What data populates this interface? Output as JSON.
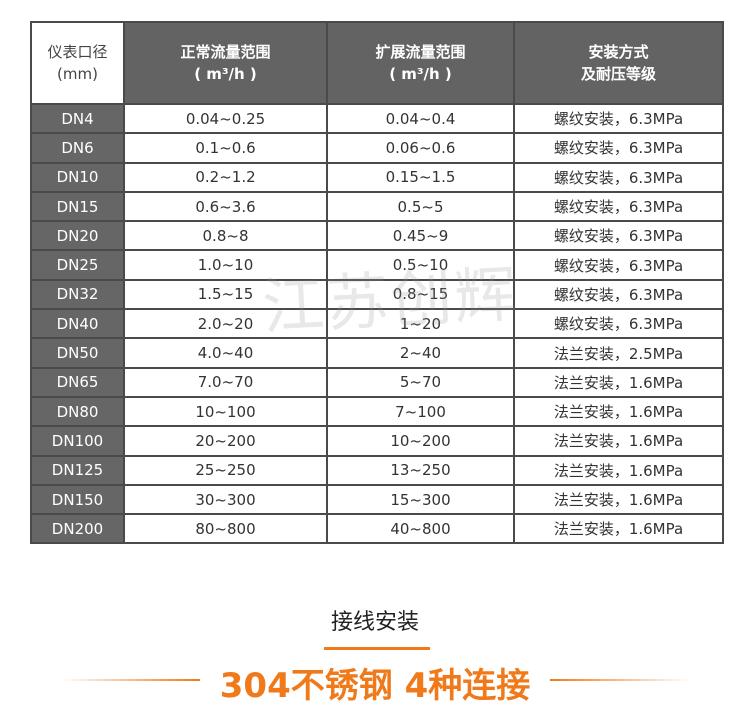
{
  "table": {
    "headers": [
      {
        "line1": "仪表口径",
        "line2": "(mm)"
      },
      {
        "line1": "正常流量范围",
        "line2": "( m³/h )"
      },
      {
        "line1": "扩展流量范围",
        "line2": "( m³/h )"
      },
      {
        "line1": "安装方式",
        "line2": "及耐压等级"
      }
    ],
    "rows": [
      [
        "DN4",
        "0.04~0.25",
        "0.04~0.4",
        "螺纹安装，6.3MPa"
      ],
      [
        "DN6",
        "0.1~0.6",
        "0.06~0.6",
        "螺纹安装，6.3MPa"
      ],
      [
        "DN10",
        "0.2~1.2",
        "0.15~1.5",
        "螺纹安装，6.3MPa"
      ],
      [
        "DN15",
        "0.6~3.6",
        "0.5~5",
        "螺纹安装，6.3MPa"
      ],
      [
        "DN20",
        "0.8~8",
        "0.45~9",
        "螺纹安装，6.3MPa"
      ],
      [
        "DN25",
        "1.0~10",
        "0.5~10",
        "螺纹安装，6.3MPa"
      ],
      [
        "DN32",
        "1.5~15",
        "0.8~15",
        "螺纹安装，6.3MPa"
      ],
      [
        "DN40",
        "2.0~20",
        "1~20",
        "螺纹安装，6.3MPa"
      ],
      [
        "DN50",
        "4.0~40",
        "2~40",
        "法兰安装，2.5MPa"
      ],
      [
        "DN65",
        "7.0~70",
        "5~70",
        "法兰安装，1.6MPa"
      ],
      [
        "DN80",
        "10~100",
        "7~100",
        "法兰安装，1.6MPa"
      ],
      [
        "DN100",
        "20~200",
        "10~200",
        "法兰安装，1.6MPa"
      ],
      [
        "DN125",
        "25~250",
        "13~250",
        "法兰安装，1.6MPa"
      ],
      [
        "DN150",
        "30~300",
        "15~300",
        "法兰安装，1.6MPa"
      ],
      [
        "DN200",
        "80~800",
        "40~800",
        "法兰安装，1.6MPa"
      ]
    ]
  },
  "watermark": "江苏创辉",
  "section": {
    "subtitle": "接线安装",
    "title": "304不锈钢 4种连接",
    "accent_color": "#f07a1a"
  }
}
